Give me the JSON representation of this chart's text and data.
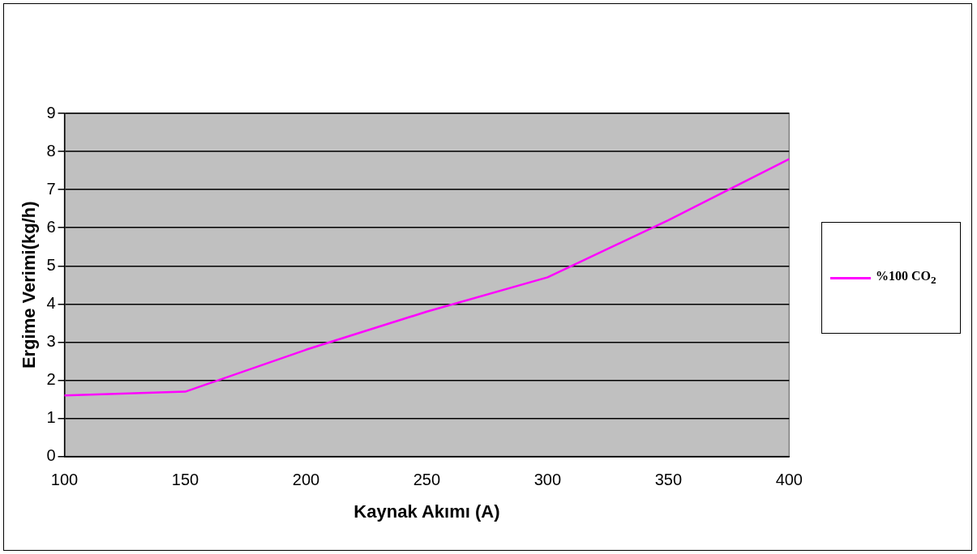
{
  "chart_data": {
    "type": "line",
    "xlabel": "Kaynak Akımı (A)",
    "ylabel": "Ergime Verimi(kg/h)",
    "categories": [
      "100",
      "150",
      "200",
      "250",
      "300",
      "350",
      "400"
    ],
    "series": [
      {
        "name": "%100 CO$_{2}$",
        "color": "#ff00ff",
        "values": [
          1.6,
          1.7,
          2.8,
          3.8,
          4.7,
          6.2,
          7.8
        ]
      }
    ],
    "ylim": [
      0,
      9
    ],
    "yticks": [
      0,
      1,
      2,
      3,
      4,
      5,
      6,
      7,
      8,
      9
    ],
    "grid": "y",
    "legend": "right",
    "marker": "none",
    "line_style": "solid"
  }
}
